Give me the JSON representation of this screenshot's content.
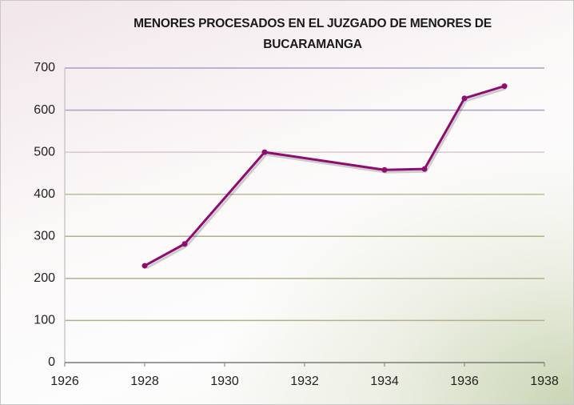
{
  "chart_data": {
    "type": "line",
    "title": "MENORES PROCESADOS EN EL JUZGADO DE MENORES DE BUCARAMANGA",
    "x": [
      1928,
      1929,
      1931,
      1934,
      1935,
      1936,
      1937
    ],
    "series": [
      {
        "name": "Menores procesados",
        "color": "#8e0c72",
        "values": [
          230,
          282,
          500,
          458,
          460,
          628,
          657
        ]
      }
    ],
    "xlim": [
      1926,
      1938
    ],
    "xticks": [
      1926,
      1928,
      1930,
      1932,
      1934,
      1936,
      1938
    ],
    "ylim": [
      0,
      700
    ],
    "yticks": [
      0,
      100,
      200,
      300,
      400,
      500,
      600,
      700
    ],
    "grid": true,
    "legend": false
  }
}
